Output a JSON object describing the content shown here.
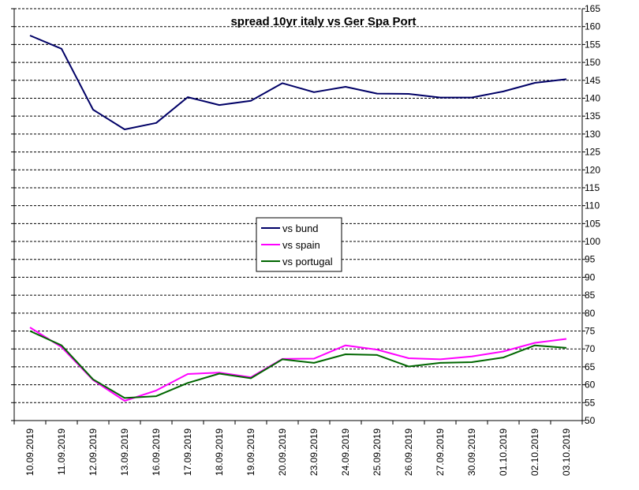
{
  "chart_data": {
    "type": "line",
    "title": "spread 10yr italy vs Ger Spa Port",
    "xlabel": "",
    "ylabel": "",
    "ylim": [
      50,
      165
    ],
    "y_ticks": [
      50,
      55,
      60,
      65,
      70,
      75,
      80,
      85,
      90,
      95,
      100,
      105,
      110,
      115,
      120,
      125,
      130,
      135,
      140,
      145,
      150,
      155,
      160,
      165
    ],
    "y_axis_side": "right",
    "grid": true,
    "legend_position": "center",
    "categories": [
      "10.09.2019",
      "11.09.2019",
      "12.09.2019",
      "13.09.2019",
      "16.09.2019",
      "17.09.2019",
      "18.09.2019",
      "19.09.2019",
      "20.09.2019",
      "23.09.2019",
      "24.09.2019",
      "25.09.2019",
      "26.09.2019",
      "27.09.2019",
      "30.09.2019",
      "01.10.2019",
      "02.10.2019",
      "03.10.2019"
    ],
    "series": [
      {
        "name": "vs bund",
        "color": "#000066",
        "values": [
          157.5,
          153.8,
          136.8,
          131.3,
          133.1,
          140.3,
          138.1,
          139.3,
          144.2,
          141.7,
          143.2,
          141.3,
          141.2,
          140.2,
          140.2,
          141.9,
          144.3,
          145.3
        ]
      },
      {
        "name": "vs spain",
        "color": "#ff00ff",
        "values": [
          76.0,
          70.5,
          61.3,
          55.5,
          58.4,
          63.0,
          63.4,
          62.1,
          67.2,
          67.3,
          71.0,
          69.8,
          67.4,
          67.1,
          67.9,
          69.3,
          71.7,
          72.8
        ]
      },
      {
        "name": "vs portugal",
        "color": "#006600",
        "values": [
          75.0,
          71.0,
          61.5,
          56.3,
          56.8,
          60.5,
          63.1,
          61.8,
          67.1,
          66.1,
          68.5,
          68.3,
          65.1,
          66.1,
          66.3,
          67.6,
          71.0,
          70.3
        ]
      }
    ]
  }
}
